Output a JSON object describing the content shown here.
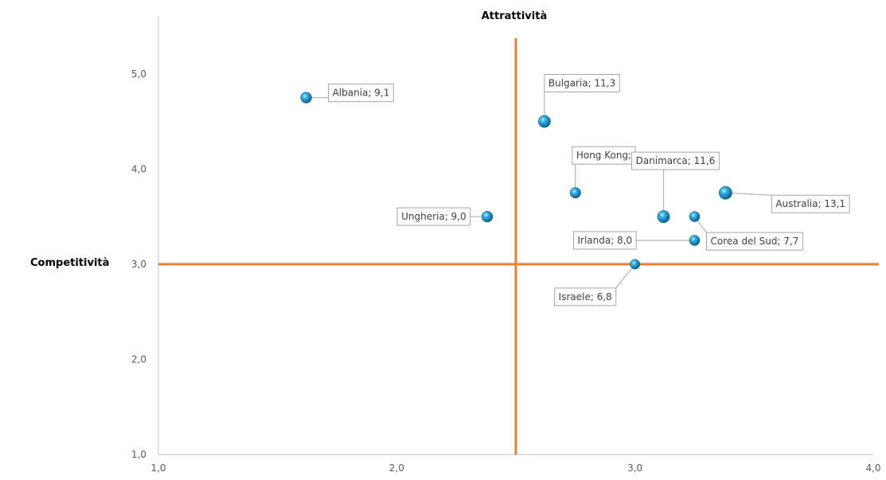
{
  "chart_data": {
    "type": "scatter",
    "title": "",
    "xlabel": "Attrattività",
    "ylabel": "Competitività",
    "xlim": [
      1.0,
      4.0
    ],
    "ylim": [
      1.0,
      5.5
    ],
    "x_ticks": [
      "1,0",
      "2,0",
      "3,0",
      "4,0"
    ],
    "y_ticks": [
      "1,0",
      "2,0",
      "3,0",
      "4,0",
      "5,0"
    ],
    "x_tick_values": [
      1.0,
      2.0,
      3.0,
      4.0
    ],
    "y_tick_values": [
      1.0,
      2.0,
      3.0,
      4.0,
      5.0
    ],
    "grid": false,
    "legend": "none",
    "reference_lines": {
      "x": 2.5,
      "y": 3.0,
      "color": "#ED7D31"
    },
    "marker_color": "#1F9BD1",
    "points": [
      {
        "label": "Albania; 9,1",
        "x": 1.62,
        "y": 4.75,
        "size": 9.1
      },
      {
        "label": "Bulgaria; 11,3",
        "x": 2.62,
        "y": 4.5,
        "size": 11.3
      },
      {
        "label": "Hong Kong;",
        "x": 2.75,
        "y": 3.75,
        "size": 8.5
      },
      {
        "label": "Danimarca; 11,6",
        "x": 3.12,
        "y": 3.5,
        "size": 11.6
      },
      {
        "label": "Australia; 13,1",
        "x": 3.38,
        "y": 3.75,
        "size": 13.1
      },
      {
        "label": "Ungheria; 9,0",
        "x": 2.38,
        "y": 3.5,
        "size": 9.0
      },
      {
        "label": "Corea del Sud; 7,7",
        "x": 3.25,
        "y": 3.5,
        "size": 7.7
      },
      {
        "label": "Irlanda; 8,0",
        "x": 3.25,
        "y": 3.25,
        "size": 8.0
      },
      {
        "label": "Israele; 6,8",
        "x": 3.0,
        "y": 3.0,
        "size": 6.8
      }
    ]
  }
}
